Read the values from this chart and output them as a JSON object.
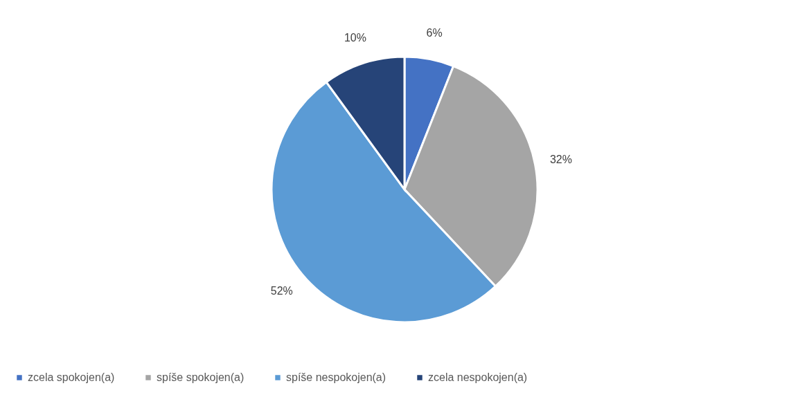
{
  "chart_data": {
    "type": "pie",
    "categories": [
      "zcela spokojen(a)",
      "spíše spokojen(a)",
      "spíše nespokojen(a)",
      "zcela nespokojen(a)"
    ],
    "values": [
      6,
      32,
      52,
      10
    ],
    "colors": [
      "#4472c4",
      "#a5a5a5",
      "#5b9bd5",
      "#264478"
    ],
    "value_labels": [
      "6%",
      "32%",
      "52%",
      "10%"
    ],
    "legend": "bottom"
  }
}
